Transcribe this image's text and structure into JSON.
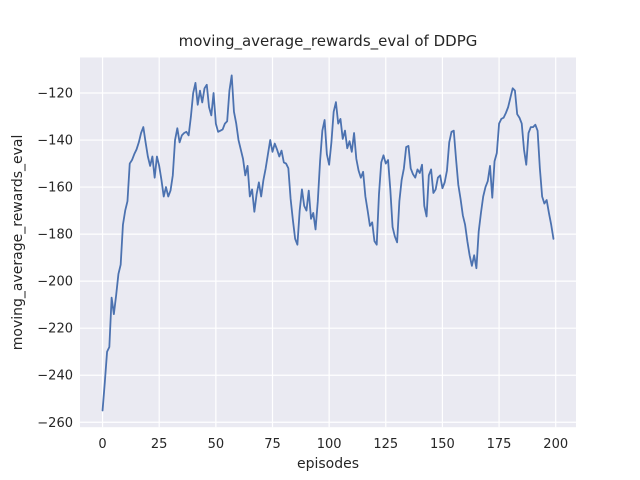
{
  "chart_data": {
    "type": "line",
    "title": "moving_average_rewards_eval of DDPG",
    "xlabel": "episodes",
    "ylabel": "moving_average_rewards_eval",
    "grid": true,
    "legend_position": "none",
    "plot_bg_color": "#eaeaf2",
    "grid_color": "#ffffff",
    "line_color": "#4c72b0",
    "text_color": "#262626",
    "xlim": [
      -9.95,
      208.95
    ],
    "ylim": [
      -262.1,
      -104.9
    ],
    "xticks": [
      0,
      25,
      50,
      75,
      100,
      125,
      150,
      175,
      200
    ],
    "yticks": [
      -260,
      -240,
      -220,
      -200,
      -180,
      -160,
      -140,
      -120
    ],
    "series": [
      {
        "name": "moving_average_rewards_eval",
        "x": [
          0,
          1,
          2,
          3,
          4,
          5,
          6,
          7,
          8,
          9,
          10,
          11,
          12,
          13,
          14,
          15,
          16,
          17,
          18,
          19,
          20,
          21,
          22,
          23,
          24,
          25,
          26,
          27,
          28,
          29,
          30,
          31,
          32,
          33,
          34,
          35,
          36,
          37,
          38,
          39,
          40,
          41,
          42,
          43,
          44,
          45,
          46,
          47,
          48,
          49,
          50,
          51,
          52,
          53,
          54,
          55,
          56,
          57,
          58,
          59,
          60,
          61,
          62,
          63,
          64,
          65,
          66,
          67,
          68,
          69,
          70,
          71,
          72,
          73,
          74,
          75,
          76,
          77,
          78,
          79,
          80,
          81,
          82,
          83,
          84,
          85,
          86,
          87,
          88,
          89,
          90,
          91,
          92,
          93,
          94,
          95,
          96,
          97,
          98,
          99,
          100,
          101,
          102,
          103,
          104,
          105,
          106,
          107,
          108,
          109,
          110,
          111,
          112,
          113,
          114,
          115,
          116,
          117,
          118,
          119,
          120,
          121,
          122,
          123,
          124,
          125,
          126,
          127,
          128,
          129,
          130,
          131,
          132,
          133,
          134,
          135,
          136,
          137,
          138,
          139,
          140,
          141,
          142,
          143,
          144,
          145,
          146,
          147,
          148,
          149,
          150,
          151,
          152,
          153,
          154,
          155,
          156,
          157,
          158,
          159,
          160,
          161,
          162,
          163,
          164,
          165,
          166,
          167,
          168,
          169,
          170,
          171,
          172,
          173,
          174,
          175,
          176,
          177,
          178,
          179,
          180,
          181,
          182,
          183,
          184,
          185,
          186,
          187,
          188,
          189,
          190,
          191,
          192,
          193,
          194,
          195,
          196,
          197,
          198,
          199
        ],
        "values": [
          -255,
          -243,
          -230,
          -228,
          -207,
          -214,
          -206,
          -197,
          -193,
          -176,
          -170,
          -166,
          -150,
          -148.5,
          -146,
          -144,
          -141,
          -137,
          -134.5,
          -141,
          -147,
          -151,
          -147,
          -156,
          -147,
          -151,
          -157,
          -164,
          -160,
          -164,
          -161.5,
          -155,
          -140,
          -135,
          -141,
          -138,
          -137,
          -136.5,
          -138,
          -130,
          -120,
          -115.7,
          -125,
          -119,
          -124,
          -118,
          -116.5,
          -126,
          -129.5,
          -120,
          -133,
          -136.5,
          -136,
          -135.5,
          -133,
          -132,
          -119,
          -112.5,
          -128,
          -133,
          -140,
          -144,
          -148,
          -155,
          -151,
          -164,
          -161,
          -170.5,
          -163,
          -158,
          -164,
          -157,
          -152,
          -146,
          -140,
          -145,
          -141.5,
          -144,
          -147,
          -144.5,
          -149.5,
          -150,
          -152,
          -165,
          -174,
          -182,
          -184.5,
          -170,
          -161,
          -168,
          -170,
          -161.5,
          -173.5,
          -171,
          -178,
          -166,
          -149,
          -136,
          -131.5,
          -146,
          -150.5,
          -141,
          -128,
          -123.9,
          -133,
          -131,
          -139.5,
          -136,
          -143.5,
          -140.5,
          -145,
          -137,
          -148,
          -153,
          -156,
          -153.5,
          -164,
          -170,
          -176.5,
          -175,
          -183,
          -184.5,
          -163,
          -149.5,
          -146.5,
          -150,
          -148.5,
          -161,
          -177,
          -181,
          -183.5,
          -166,
          -157,
          -152,
          -143,
          -142.5,
          -152,
          -154.5,
          -156,
          -152.5,
          -154,
          -150.5,
          -168,
          -172.5,
          -155,
          -152.5,
          -162.5,
          -161,
          -156,
          -155,
          -160.5,
          -158,
          -153,
          -141,
          -136.5,
          -136,
          -148,
          -159,
          -165,
          -172,
          -176,
          -183,
          -189,
          -193.5,
          -189,
          -194.5,
          -179,
          -171,
          -164,
          -160,
          -157.5,
          -151,
          -164.5,
          -149,
          -145.5,
          -133,
          -131,
          -130.5,
          -128.5,
          -126,
          -122,
          -118,
          -119,
          -129,
          -130.5,
          -133,
          -144,
          -150.5,
          -137,
          -134.5,
          -134.5,
          -133.5,
          -136,
          -152,
          -164,
          -167,
          -165.5,
          -171,
          -176,
          -182
        ]
      }
    ]
  }
}
